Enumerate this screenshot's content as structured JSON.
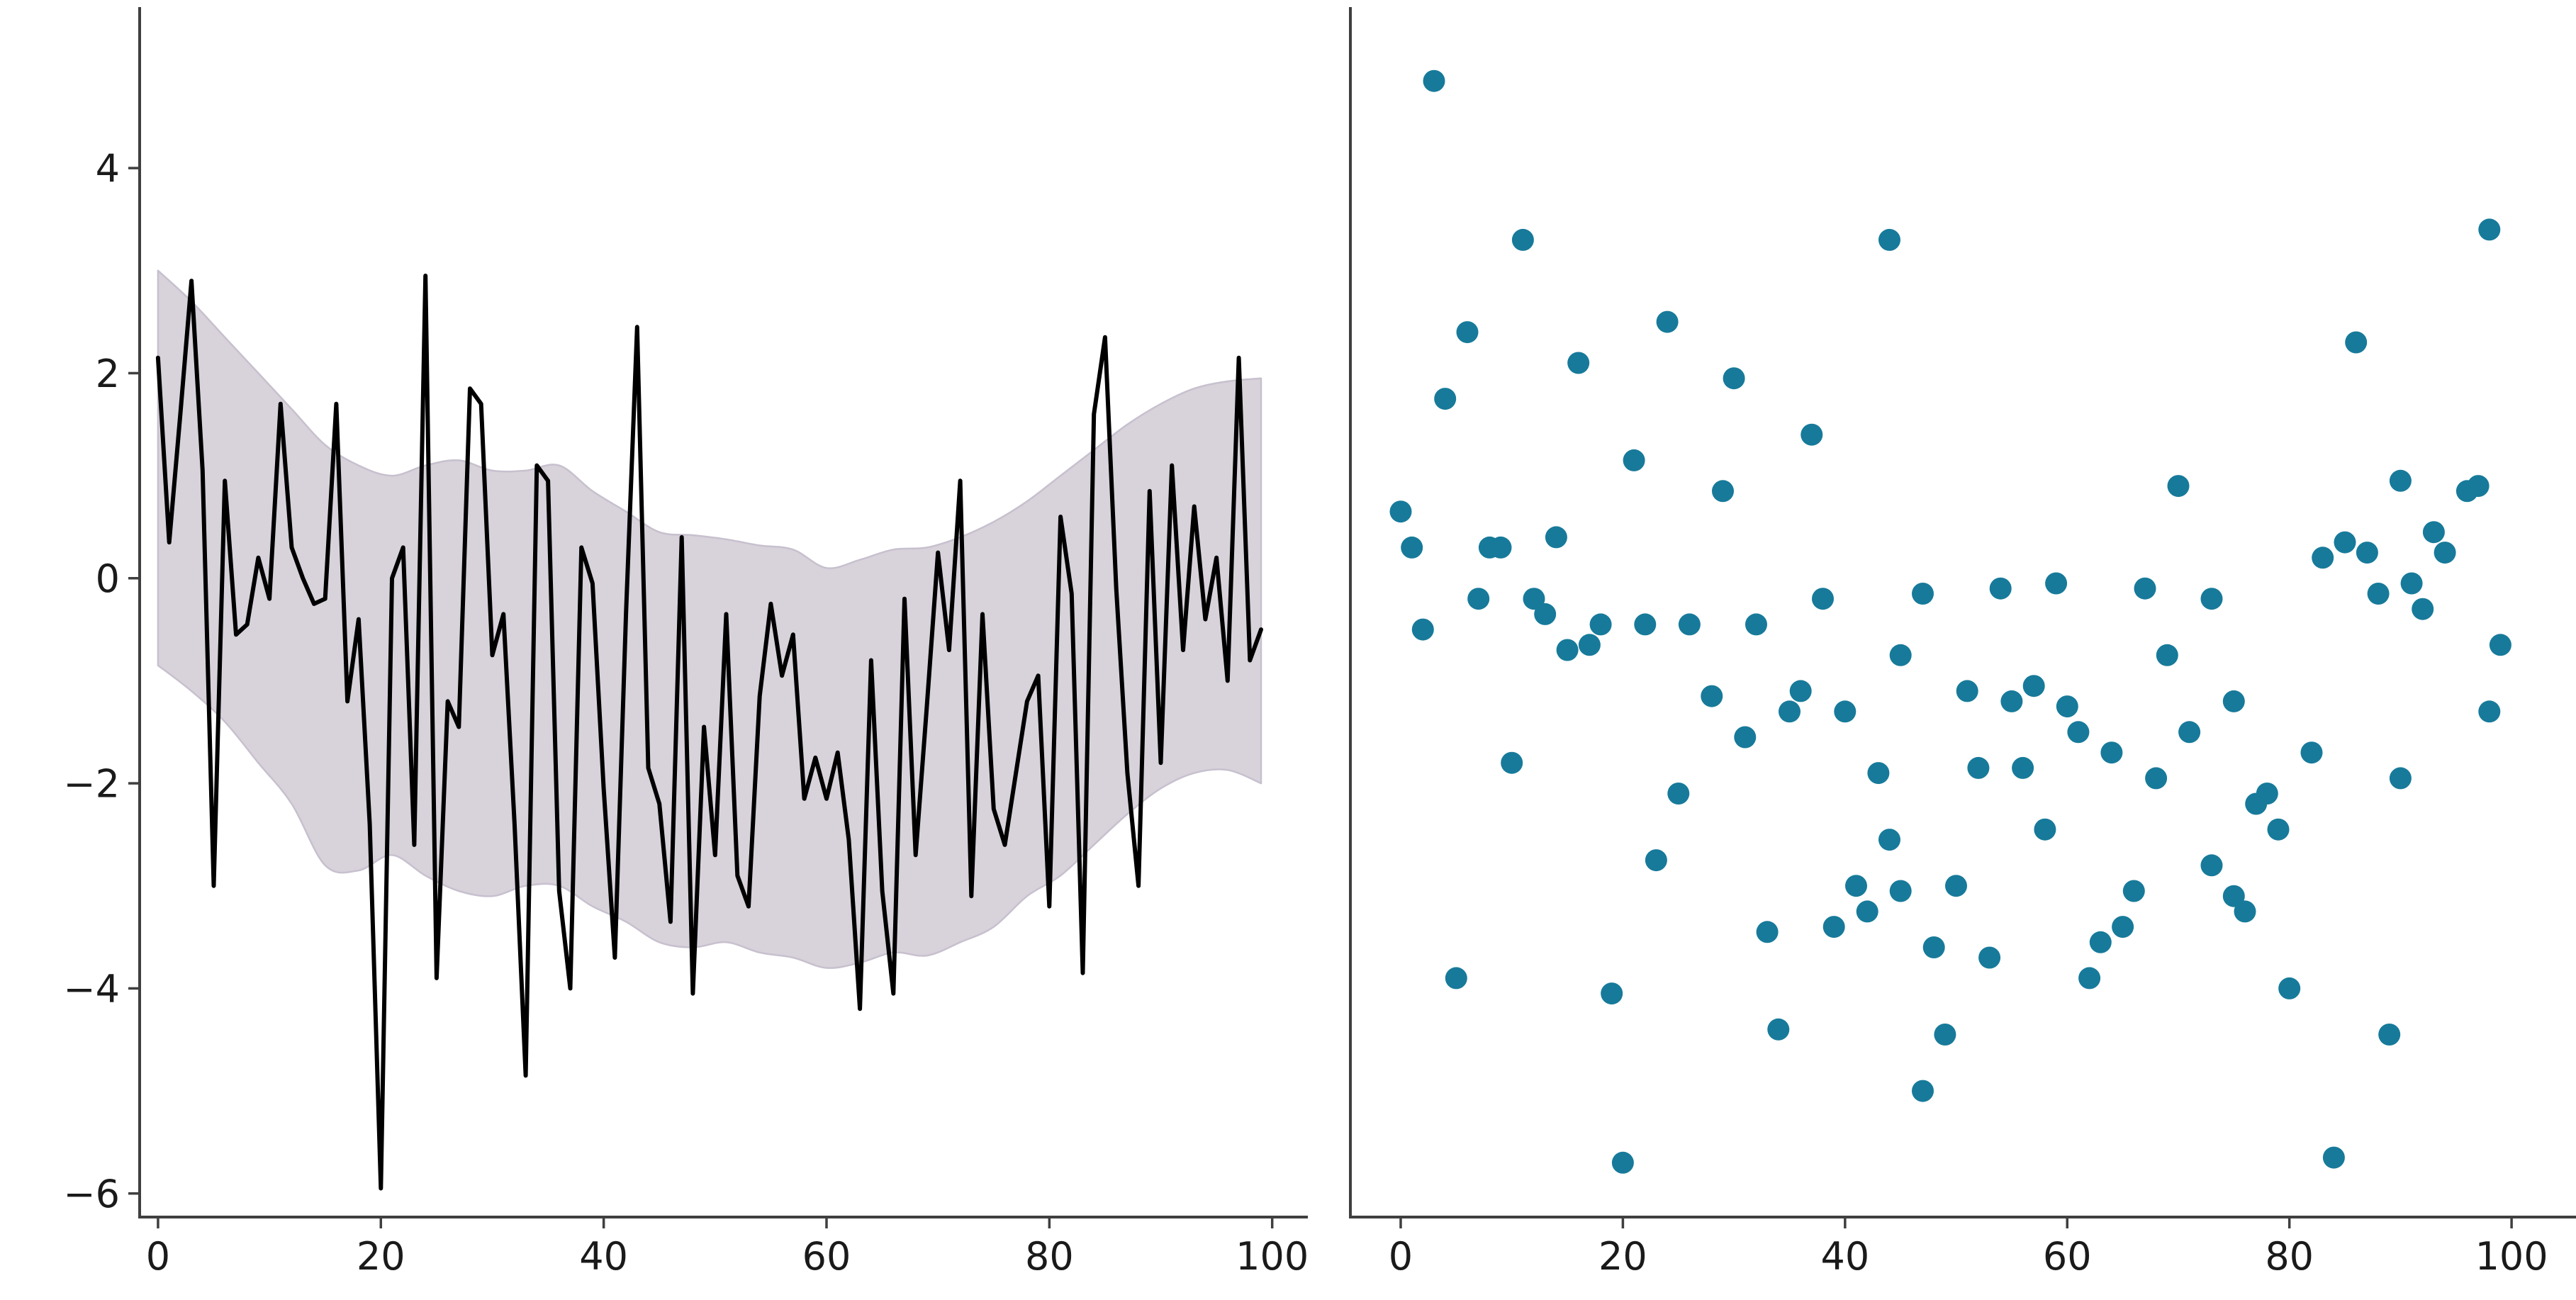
{
  "figure": {
    "background": "#ffffff",
    "panels": [
      "line-with-confidence-band",
      "scatter"
    ]
  },
  "chart_data": [
    {
      "type": "line",
      "panel": "left",
      "title": "",
      "xlabel": "",
      "ylabel": "",
      "x_start": 0,
      "x_step": 1,
      "xlim": [
        -1.65,
        103.2
      ],
      "ylim": [
        -6.23,
        5.57
      ],
      "xticks": [
        0,
        20,
        40,
        60,
        80,
        100
      ],
      "xtick_labels": [
        "0",
        "20",
        "40",
        "60",
        "80",
        "100"
      ],
      "yticks": [
        4,
        2,
        0,
        -2,
        -4,
        -6
      ],
      "ytick_labels": [
        "4",
        "2",
        "0",
        "−2",
        "−4",
        "−6"
      ],
      "grid": false,
      "line_color": "#000000",
      "band_fill": "#d8d2db",
      "band_edge": "#c7c0ce",
      "values": [
        2.15,
        0.35,
        1.6,
        2.9,
        1.05,
        -3.0,
        0.95,
        -0.55,
        -0.45,
        0.2,
        -0.2,
        1.7,
        0.3,
        0.0,
        -0.25,
        -0.2,
        1.7,
        -1.2,
        -0.4,
        -2.4,
        -5.95,
        0.0,
        0.3,
        -2.6,
        2.95,
        -3.9,
        -1.2,
        -1.45,
        1.85,
        1.7,
        -0.75,
        -0.35,
        -2.4,
        -4.85,
        1.1,
        0.95,
        -3.05,
        -4.0,
        0.3,
        -0.05,
        -2.05,
        -3.7,
        -0.35,
        2.45,
        -1.85,
        -2.2,
        -3.35,
        0.4,
        -4.05,
        -1.45,
        -2.7,
        -0.35,
        -2.9,
        -3.2,
        -1.15,
        -0.25,
        -0.95,
        -0.55,
        -2.15,
        -1.75,
        -2.15,
        -1.7,
        -2.55,
        -4.2,
        -0.8,
        -3.05,
        -4.05,
        -0.2,
        -2.7,
        -1.25,
        0.25,
        -0.7,
        0.95,
        -3.1,
        -0.35,
        -2.25,
        -2.6,
        -1.9,
        -1.2,
        -0.95,
        -3.2,
        0.6,
        -0.15,
        -3.85,
        1.6,
        2.35,
        -0.1,
        -1.9,
        -3.0,
        0.85,
        -1.8,
        1.1,
        -0.7,
        0.7,
        -0.4,
        0.2,
        -1.0,
        2.15,
        -0.8,
        -0.5
      ],
      "band": {
        "x": [
          0,
          3,
          6,
          9,
          12,
          15,
          18,
          21,
          24,
          27,
          30,
          33,
          36,
          39,
          42,
          45,
          48,
          51,
          54,
          57,
          60,
          63,
          66,
          69,
          72,
          75,
          78,
          81,
          84,
          87,
          90,
          93,
          96,
          99
        ],
        "top": [
          3.0,
          2.7,
          2.35,
          2.0,
          1.65,
          1.3,
          1.1,
          1.0,
          1.1,
          1.15,
          1.05,
          1.05,
          1.1,
          0.85,
          0.65,
          0.45,
          0.42,
          0.38,
          0.32,
          0.28,
          0.1,
          0.18,
          0.28,
          0.3,
          0.4,
          0.55,
          0.75,
          1.0,
          1.25,
          1.5,
          1.7,
          1.85,
          1.92,
          1.95
        ],
        "bottom": [
          -0.85,
          -1.1,
          -1.4,
          -1.8,
          -2.2,
          -2.8,
          -2.85,
          -2.7,
          -2.9,
          -3.05,
          -3.1,
          -3.0,
          -3.0,
          -3.2,
          -3.35,
          -3.55,
          -3.6,
          -3.55,
          -3.65,
          -3.7,
          -3.8,
          -3.75,
          -3.65,
          -3.68,
          -3.55,
          -3.4,
          -3.1,
          -2.9,
          -2.6,
          -2.3,
          -2.05,
          -1.9,
          -1.87,
          -2.0
        ]
      }
    },
    {
      "type": "scatter",
      "panel": "right",
      "title": "",
      "xlabel": "",
      "ylabel": "",
      "xlim": [
        -4.53,
        105.8
      ],
      "ylim": [
        -6.23,
        5.57
      ],
      "xticks": [
        0,
        20,
        40,
        60,
        80,
        100
      ],
      "xtick_labels": [
        "0",
        "20",
        "40",
        "60",
        "80",
        "100"
      ],
      "yticks": [],
      "ytick_labels": [],
      "grid": false,
      "dot_color": "#177a9a",
      "dot_radius": 15.5,
      "points": [
        [
          0,
          0.65
        ],
        [
          1,
          0.3
        ],
        [
          2,
          -0.5
        ],
        [
          3,
          4.85
        ],
        [
          4,
          1.75
        ],
        [
          5,
          -3.9
        ],
        [
          6,
          2.4
        ],
        [
          7,
          -0.2
        ],
        [
          8,
          0.3
        ],
        [
          9,
          0.3
        ],
        [
          10,
          -1.8
        ],
        [
          11,
          3.3
        ],
        [
          12,
          -0.2
        ],
        [
          13,
          -0.35
        ],
        [
          14,
          0.4
        ],
        [
          15,
          -0.7
        ],
        [
          16,
          2.1
        ],
        [
          17,
          -0.65
        ],
        [
          18,
          -0.45
        ],
        [
          19,
          -4.05
        ],
        [
          20,
          -5.7
        ],
        [
          21,
          1.15
        ],
        [
          22,
          -0.45
        ],
        [
          23,
          -2.75
        ],
        [
          24,
          2.5
        ],
        [
          25,
          -2.1
        ],
        [
          26,
          -0.45
        ],
        [
          28,
          -1.15
        ],
        [
          29,
          0.85
        ],
        [
          30,
          1.95
        ],
        [
          31,
          -1.55
        ],
        [
          32,
          -0.45
        ],
        [
          33,
          -3.45
        ],
        [
          34,
          -4.4
        ],
        [
          35,
          -1.3
        ],
        [
          36,
          -1.1
        ],
        [
          37,
          1.4
        ],
        [
          38,
          -0.2
        ],
        [
          39,
          -3.4
        ],
        [
          40,
          -1.3
        ],
        [
          41,
          -3.0
        ],
        [
          42,
          -3.25
        ],
        [
          43,
          -1.9
        ],
        [
          44,
          -2.55
        ],
        [
          44,
          3.3
        ],
        [
          45,
          -3.05
        ],
        [
          45,
          -0.75
        ],
        [
          47,
          -0.15
        ],
        [
          47,
          -5.0
        ],
        [
          48,
          -3.6
        ],
        [
          49,
          -4.45
        ],
        [
          50,
          -3.0
        ],
        [
          51,
          -1.1
        ],
        [
          52,
          -1.85
        ],
        [
          53,
          -3.7
        ],
        [
          54,
          -0.1
        ],
        [
          55,
          -1.2
        ],
        [
          56,
          -1.85
        ],
        [
          57,
          -1.05
        ],
        [
          58,
          -2.45
        ],
        [
          59,
          -0.05
        ],
        [
          60,
          -1.25
        ],
        [
          61,
          -1.5
        ],
        [
          62,
          -3.9
        ],
        [
          63,
          -3.55
        ],
        [
          64,
          -1.7
        ],
        [
          65,
          -3.4
        ],
        [
          66,
          -3.05
        ],
        [
          67,
          -0.1
        ],
        [
          68,
          -1.95
        ],
        [
          69,
          -0.75
        ],
        [
          70,
          0.9
        ],
        [
          71,
          -1.5
        ],
        [
          73,
          -0.2
        ],
        [
          73,
          -2.8
        ],
        [
          75,
          -1.2
        ],
        [
          75,
          -3.1
        ],
        [
          76,
          -3.25
        ],
        [
          77,
          -2.2
        ],
        [
          78,
          -2.1
        ],
        [
          79,
          -2.45
        ],
        [
          80,
          -4.0
        ],
        [
          82,
          -1.7
        ],
        [
          83,
          0.2
        ],
        [
          84,
          -5.65
        ],
        [
          85,
          0.35
        ],
        [
          86,
          2.3
        ],
        [
          87,
          0.25
        ],
        [
          88,
          -0.15
        ],
        [
          89,
          -4.45
        ],
        [
          90,
          0.95
        ],
        [
          90,
          -1.95
        ],
        [
          91,
          -0.05
        ],
        [
          92,
          -0.3
        ],
        [
          93,
          0.45
        ],
        [
          94,
          0.25
        ],
        [
          96,
          0.85
        ],
        [
          97,
          0.9
        ],
        [
          98,
          3.4
        ],
        [
          98,
          -1.3
        ],
        [
          99,
          -0.65
        ]
      ]
    }
  ],
  "style": {
    "spine_color": "#3f3f3f",
    "tick_color": "#3f3f3f",
    "tick_label_color": "#1a1a1a"
  }
}
